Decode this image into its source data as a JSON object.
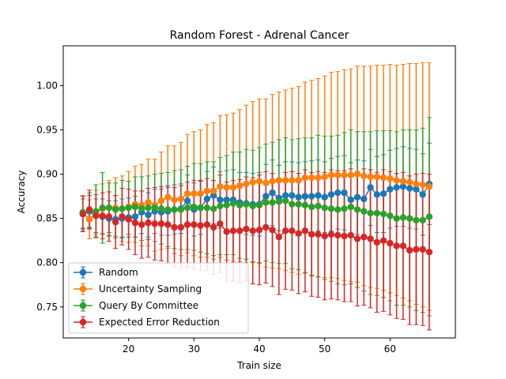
{
  "chart_data": {
    "type": "line",
    "title": "Random Forest - Adrenal Cancer",
    "xlabel": "Train size",
    "ylabel": "Accuracy",
    "xlim": [
      10,
      70
    ],
    "ylim": [
      0.715,
      1.045
    ],
    "xticks": [
      20,
      30,
      40,
      50,
      60
    ],
    "xtick_labels": [
      "20",
      "30",
      "40",
      "50",
      "60"
    ],
    "yticks": [
      0.75,
      0.8,
      0.85,
      0.9,
      0.95,
      1.0
    ],
    "ytick_labels": [
      "0.75",
      "0.80",
      "0.85",
      "0.90",
      "0.95",
      "1.00"
    ],
    "grid": false,
    "legend_position": "lower-left",
    "x": [
      13,
      14,
      15,
      16,
      17,
      18,
      19,
      20,
      21,
      22,
      23,
      24,
      25,
      26,
      27,
      28,
      29,
      30,
      31,
      32,
      33,
      34,
      35,
      36,
      37,
      38,
      39,
      40,
      41,
      42,
      43,
      44,
      45,
      46,
      47,
      48,
      49,
      50,
      51,
      52,
      53,
      54,
      55,
      56,
      57,
      58,
      59,
      60,
      61,
      62,
      63,
      64,
      65,
      66
    ],
    "series": [
      {
        "name": "Random",
        "color": "#1f77b4",
        "values": [
          0.855,
          0.858,
          0.853,
          0.852,
          0.85,
          0.849,
          0.85,
          0.851,
          0.852,
          0.857,
          0.854,
          0.858,
          0.857,
          0.858,
          0.86,
          0.861,
          0.87,
          0.86,
          0.862,
          0.872,
          0.876,
          0.871,
          0.871,
          0.871,
          0.868,
          0.867,
          0.866,
          0.866,
          0.875,
          0.879,
          0.873,
          0.876,
          0.876,
          0.874,
          0.875,
          0.875,
          0.876,
          0.874,
          0.877,
          0.879,
          0.879,
          0.871,
          0.874,
          0.872,
          0.885,
          0.877,
          0.878,
          0.883,
          0.885,
          0.886,
          0.884,
          0.883,
          0.877,
          0.889
        ],
        "errors": [
          0.017,
          0.018,
          0.019,
          0.02,
          0.02,
          0.021,
          0.022,
          0.022,
          0.023,
          0.024,
          0.025,
          0.025,
          0.026,
          0.027,
          0.028,
          0.028,
          0.029,
          0.03,
          0.03,
          0.031,
          0.032,
          0.032,
          0.033,
          0.034,
          0.034,
          0.035,
          0.035,
          0.036,
          0.036,
          0.037,
          0.037,
          0.038,
          0.038,
          0.039,
          0.039,
          0.04,
          0.04,
          0.04,
          0.041,
          0.041,
          0.042,
          0.042,
          0.042,
          0.043,
          0.043,
          0.043,
          0.044,
          0.044,
          0.044,
          0.045,
          0.045,
          0.045,
          0.046,
          0.046
        ]
      },
      {
        "name": "Uncertainty Sampling",
        "color": "#ff7f0e",
        "values": [
          0.856,
          0.849,
          0.857,
          0.861,
          0.862,
          0.862,
          0.861,
          0.863,
          0.866,
          0.865,
          0.868,
          0.865,
          0.87,
          0.874,
          0.871,
          0.872,
          0.878,
          0.878,
          0.878,
          0.881,
          0.881,
          0.886,
          0.885,
          0.885,
          0.887,
          0.889,
          0.891,
          0.892,
          0.89,
          0.892,
          0.893,
          0.893,
          0.893,
          0.893,
          0.896,
          0.896,
          0.896,
          0.897,
          0.899,
          0.899,
          0.899,
          0.899,
          0.9,
          0.898,
          0.897,
          0.897,
          0.896,
          0.895,
          0.893,
          0.892,
          0.891,
          0.889,
          0.888,
          0.886
        ],
        "errors": [
          0.02,
          0.022,
          0.025,
          0.028,
          0.031,
          0.034,
          0.037,
          0.04,
          0.043,
          0.046,
          0.049,
          0.052,
          0.055,
          0.058,
          0.061,
          0.064,
          0.067,
          0.07,
          0.072,
          0.075,
          0.077,
          0.08,
          0.082,
          0.084,
          0.086,
          0.089,
          0.091,
          0.093,
          0.095,
          0.098,
          0.1,
          0.102,
          0.104,
          0.106,
          0.108,
          0.11,
          0.112,
          0.114,
          0.116,
          0.117,
          0.119,
          0.12,
          0.122,
          0.124,
          0.125,
          0.126,
          0.127,
          0.129,
          0.13,
          0.132,
          0.134,
          0.136,
          0.138,
          0.14
        ]
      },
      {
        "name": "Query By Committee",
        "color": "#2ca02c",
        "values": [
          0.857,
          0.859,
          0.858,
          0.862,
          0.862,
          0.86,
          0.861,
          0.862,
          0.863,
          0.861,
          0.862,
          0.862,
          0.861,
          0.86,
          0.86,
          0.86,
          0.862,
          0.863,
          0.862,
          0.862,
          0.861,
          0.864,
          0.865,
          0.867,
          0.865,
          0.866,
          0.864,
          0.865,
          0.868,
          0.868,
          0.869,
          0.87,
          0.866,
          0.866,
          0.865,
          0.863,
          0.864,
          0.862,
          0.861,
          0.86,
          0.861,
          0.863,
          0.86,
          0.858,
          0.856,
          0.856,
          0.855,
          0.853,
          0.85,
          0.851,
          0.85,
          0.848,
          0.848,
          0.852
        ],
        "errors": [
          0.018,
          0.02,
          0.03,
          0.04,
          0.028,
          0.03,
          0.032,
          0.03,
          0.034,
          0.036,
          0.036,
          0.038,
          0.04,
          0.042,
          0.044,
          0.045,
          0.047,
          0.049,
          0.05,
          0.052,
          0.053,
          0.055,
          0.056,
          0.058,
          0.06,
          0.062,
          0.063,
          0.065,
          0.066,
          0.068,
          0.07,
          0.071,
          0.073,
          0.074,
          0.076,
          0.078,
          0.08,
          0.081,
          0.082,
          0.084,
          0.086,
          0.087,
          0.088,
          0.09,
          0.092,
          0.093,
          0.094,
          0.096,
          0.098,
          0.099,
          0.1,
          0.102,
          0.104,
          0.112
        ]
      },
      {
        "name": "Expected Error Reduction",
        "color": "#d62728",
        "values": [
          0.855,
          0.86,
          0.853,
          0.853,
          0.852,
          0.846,
          0.852,
          0.849,
          0.845,
          0.843,
          0.845,
          0.844,
          0.844,
          0.843,
          0.84,
          0.84,
          0.843,
          0.843,
          0.842,
          0.843,
          0.84,
          0.844,
          0.835,
          0.836,
          0.836,
          0.838,
          0.836,
          0.837,
          0.84,
          0.837,
          0.829,
          0.836,
          0.836,
          0.833,
          0.836,
          0.832,
          0.832,
          0.83,
          0.832,
          0.831,
          0.83,
          0.831,
          0.827,
          0.829,
          0.827,
          0.823,
          0.825,
          0.822,
          0.819,
          0.819,
          0.814,
          0.815,
          0.815,
          0.812
        ],
        "errors": [
          0.02,
          0.022,
          0.024,
          0.026,
          0.028,
          0.03,
          0.032,
          0.034,
          0.036,
          0.038,
          0.039,
          0.041,
          0.042,
          0.044,
          0.045,
          0.047,
          0.048,
          0.05,
          0.051,
          0.052,
          0.053,
          0.055,
          0.056,
          0.057,
          0.058,
          0.059,
          0.06,
          0.062,
          0.063,
          0.064,
          0.065,
          0.066,
          0.067,
          0.068,
          0.069,
          0.07,
          0.071,
          0.072,
          0.073,
          0.073,
          0.074,
          0.075,
          0.076,
          0.077,
          0.078,
          0.079,
          0.08,
          0.081,
          0.082,
          0.083,
          0.084,
          0.085,
          0.086,
          0.088
        ]
      }
    ]
  }
}
